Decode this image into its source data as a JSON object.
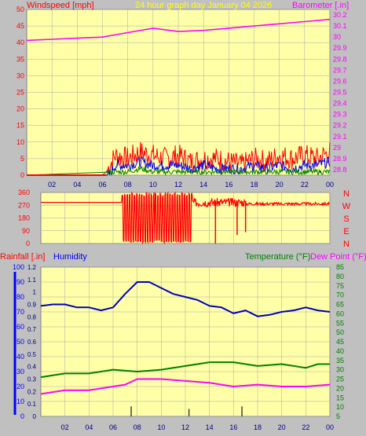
{
  "header": {
    "title": "24 hour graph day   January 04 2026",
    "left_label": "Windspeed [mph]",
    "right_label": "Barometer [.in]"
  },
  "colors": {
    "background": "#c0c0c0",
    "plot_bg": "#ffffa8",
    "grid": "#a8a8a8",
    "wind": "#ff0000",
    "wind_avg": "#0000ff",
    "wind_low": "#008000",
    "baro": "#ff00ff",
    "dir": "#ff0000",
    "humidity": "#0000c0",
    "temperature": "#008000",
    "dewpoint": "#ff00ff",
    "rain": "#000000",
    "title": "#ffff00",
    "left_axis_red": "#ff0000",
    "left_axis_blue": "#0000ff"
  },
  "chart_data": [
    {
      "type": "line",
      "name": "wind-barometer",
      "x_ticks": [
        "02",
        "04",
        "06",
        "08",
        "10",
        "12",
        "14",
        "16",
        "18",
        "20",
        "22",
        "00"
      ],
      "y_left_ticks": [
        "0",
        "5",
        "10",
        "15",
        "20",
        "25",
        "30",
        "35",
        "40",
        "45",
        "50"
      ],
      "y_left_lim": [
        0,
        50
      ],
      "y_right_ticks": [
        "28.8",
        "28.9",
        "29",
        "29.1",
        "29.2",
        "29.3",
        "29.4",
        "29.5",
        "29.6",
        "29.7",
        "29.8",
        "29.9",
        "30",
        "30.1",
        "30.2"
      ],
      "y_right_lim": [
        28.75,
        30.25
      ],
      "grid": true,
      "barometer": {
        "x": [
          0,
          2,
          4,
          6,
          8,
          10,
          12,
          14,
          16,
          18,
          20,
          22,
          24
        ],
        "y": [
          29.97,
          29.98,
          29.99,
          30.0,
          30.04,
          30.08,
          30.05,
          30.06,
          30.08,
          30.1,
          30.12,
          30.14,
          30.16
        ]
      },
      "wind_gust": {
        "x": [
          0,
          6,
          6.3,
          7,
          8,
          9,
          10,
          11,
          12,
          13,
          14,
          15,
          16,
          17,
          18,
          19,
          20,
          21,
          22,
          23,
          24
        ],
        "y": [
          0,
          0,
          1,
          6,
          5,
          7,
          6,
          5,
          6,
          4,
          5,
          5,
          4,
          3,
          5,
          4,
          6,
          5,
          6,
          5,
          7
        ]
      },
      "wind_avg": {
        "x": [
          0,
          6.5,
          7,
          8,
          9,
          10,
          11,
          12,
          13,
          14,
          15,
          16,
          17,
          18,
          19,
          20,
          21,
          22,
          23,
          24
        ],
        "y": [
          0,
          0,
          3,
          3,
          4,
          3,
          3,
          3,
          2,
          3,
          2,
          2,
          2,
          3,
          2,
          3,
          2,
          3,
          3,
          4
        ]
      },
      "wind_low": {
        "x": [
          0,
          7,
          8,
          9,
          10,
          11,
          12,
          13,
          14,
          15,
          16,
          17,
          18,
          19,
          20,
          21,
          22,
          23,
          24
        ],
        "y": [
          0,
          1,
          1,
          2,
          1,
          1,
          1,
          1,
          1,
          1,
          1,
          1,
          1,
          1,
          1,
          1,
          1,
          1,
          1
        ]
      }
    },
    {
      "type": "line",
      "name": "wind-direction",
      "y_ticks": [
        "0",
        "90",
        "180",
        "270",
        "360"
      ],
      "y_lim": [
        0,
        360
      ],
      "compass_labels": [
        "N",
        "W",
        "S",
        "E",
        "N"
      ],
      "x": [
        0,
        6.7,
        7,
        7.5,
        8,
        8.5,
        9,
        9.5,
        10,
        10.5,
        11,
        11.5,
        12,
        12.5,
        13,
        14,
        15,
        16,
        17,
        18,
        19,
        20,
        21,
        22,
        23,
        24
      ],
      "y": [
        290,
        290,
        0,
        350,
        10,
        340,
        20,
        330,
        350,
        20,
        340,
        10,
        300,
        280,
        300,
        320,
        290,
        310,
        300,
        285,
        275,
        280,
        270,
        275,
        280,
        275
      ]
    },
    {
      "type": "line",
      "name": "humidity-temperature",
      "left_label": "Rainfall [.in]",
      "left_label_2": "Humidity",
      "right_label": "Temperature (°F)",
      "right_label_2": "Dew Point (°F)",
      "y_left_ticks": [
        "0",
        "10",
        "20",
        "30",
        "40",
        "50",
        "60",
        "70",
        "80",
        "90",
        "100"
      ],
      "y_left_lim": [
        0,
        100
      ],
      "y_rain_ticks": [
        "0",
        "0.1",
        "0.2",
        "0.3",
        "0.4",
        "0.5",
        "0.6",
        "0.7",
        "0.8",
        "0.9",
        "1",
        "1.1",
        "1.2"
      ],
      "y_rain_lim": [
        0,
        1.2
      ],
      "y_right_ticks": [
        "5",
        "10",
        "15",
        "20",
        "25",
        "30",
        "35",
        "40",
        "45",
        "50",
        "55",
        "60",
        "65",
        "70",
        "75",
        "80",
        "85"
      ],
      "y_right_lim": [
        5,
        85
      ],
      "humidity": {
        "x": [
          0,
          1,
          2,
          3,
          4,
          5,
          6,
          7,
          8,
          9,
          10,
          11,
          12,
          13,
          14,
          15,
          16,
          17,
          18,
          19,
          20,
          21,
          22,
          23,
          24
        ],
        "y": [
          74,
          75,
          75,
          73,
          73,
          71,
          73,
          82,
          90,
          90,
          86,
          82,
          80,
          78,
          74,
          73,
          69,
          71,
          67,
          68,
          70,
          71,
          73,
          71,
          70
        ]
      },
      "temperature": {
        "x": [
          0,
          2,
          4,
          6,
          8,
          10,
          12,
          14,
          16,
          18,
          20,
          22,
          23,
          24
        ],
        "y": [
          26,
          28,
          28,
          30,
          29,
          30,
          32,
          34,
          34,
          32,
          33,
          31,
          33,
          33
        ]
      },
      "dewpoint": {
        "x": [
          0,
          2,
          4,
          6,
          7,
          8,
          10,
          12,
          14,
          16,
          18,
          20,
          22,
          24
        ],
        "y": [
          17,
          19,
          19,
          21,
          22,
          25,
          25,
          24,
          23,
          21,
          22,
          21,
          21,
          22
        ]
      },
      "rain_marks": {
        "x": [
          7.5,
          12.3,
          16.7
        ],
        "y": [
          0.08,
          0.06,
          0.08
        ]
      }
    }
  ]
}
